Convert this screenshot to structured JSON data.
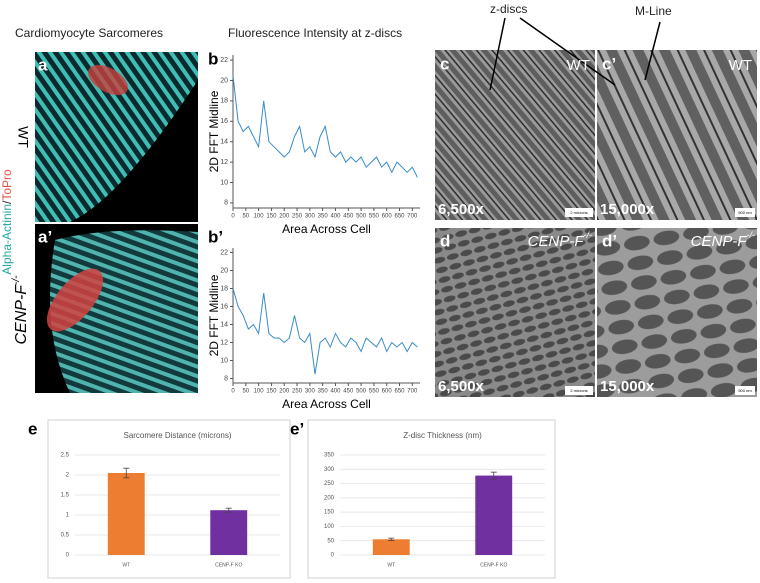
{
  "labels": {
    "col_a": "Cardiomyocyte Sarcomeres",
    "col_b": "Fluorescence Intensity at z-discs",
    "z_discs": "z-discs",
    "m_line": "M-Line",
    "panel_a": "a",
    "panel_a2": "a’",
    "panel_b": "b",
    "panel_b2": "b’",
    "panel_c": "c",
    "panel_c2": "c’",
    "panel_d": "d",
    "panel_d2": "d’",
    "panel_e": "e",
    "panel_e2": "e’",
    "wt": "WT",
    "gene": "CENP-F",
    "genotype": "-/-",
    "stain1": "Alpha-Actinin",
    "stain_sep": "/",
    "stain2": "ToPro",
    "mag_low": "6,500x",
    "mag_high": "15,000x",
    "scale_low": "2 microns",
    "scale_high": "500 nm"
  },
  "chart_data": [
    {
      "type": "line",
      "ylabel": "2D FFT Midline",
      "xlabel": "Area Across Cell",
      "x": [
        0,
        20,
        40,
        60,
        80,
        100,
        120,
        140,
        160,
        180,
        200,
        220,
        240,
        260,
        280,
        300,
        320,
        340,
        360,
        380,
        400,
        420,
        440,
        460,
        480,
        500,
        520,
        540,
        560,
        580,
        600,
        620,
        640,
        660,
        680,
        700,
        720
      ],
      "values": [
        20.5,
        16,
        15,
        15.5,
        14.5,
        13.5,
        18,
        14,
        13.5,
        13,
        12.5,
        13,
        14.5,
        15.5,
        13,
        13.5,
        12.5,
        14.5,
        15.5,
        13,
        12.5,
        13,
        12,
        12.5,
        12,
        12.5,
        11.5,
        12,
        12.5,
        11.5,
        12,
        11,
        12,
        11.5,
        11,
        11.5,
        10.5
      ],
      "color": "#3a8cc8",
      "xlim": [
        0,
        730
      ],
      "ylim": [
        7.5,
        22.5
      ],
      "xticks": [
        0,
        50,
        100,
        150,
        200,
        250,
        300,
        350,
        400,
        450,
        500,
        550,
        600,
        650,
        700
      ],
      "yticks": [
        8,
        10,
        12,
        14,
        16,
        18,
        20,
        22
      ]
    },
    {
      "type": "line",
      "ylabel": "2D FFT Midline",
      "xlabel": "Area Across Cell",
      "x": [
        0,
        20,
        40,
        60,
        80,
        100,
        120,
        140,
        160,
        180,
        200,
        220,
        240,
        260,
        280,
        300,
        320,
        340,
        360,
        380,
        400,
        420,
        440,
        460,
        480,
        500,
        520,
        540,
        560,
        580,
        600,
        620,
        640,
        660,
        680,
        700,
        720
      ],
      "values": [
        18,
        16,
        15,
        13.5,
        14,
        13,
        17.5,
        13,
        12.5,
        12.5,
        12,
        12.5,
        15,
        12.5,
        12,
        13,
        8.5,
        12,
        12.5,
        11.5,
        13,
        12,
        11.5,
        12.5,
        12,
        11,
        12.5,
        12,
        11.5,
        12.5,
        11,
        12,
        11.5,
        12,
        11,
        12,
        11.5
      ],
      "color": "#3a8cc8",
      "xlim": [
        0,
        730
      ],
      "ylim": [
        7.5,
        22.5
      ],
      "xticks": [
        0,
        50,
        100,
        150,
        200,
        250,
        300,
        350,
        400,
        450,
        500,
        550,
        600,
        650,
        700
      ],
      "yticks": [
        8,
        10,
        12,
        14,
        16,
        18,
        20,
        22
      ]
    },
    {
      "type": "bar",
      "title": "Sarcomere Distance (microns)",
      "categories": [
        "WT",
        "CENP-F KO"
      ],
      "values": [
        2.05,
        1.12
      ],
      "errors": [
        0.12,
        0.05
      ],
      "colors": [
        "#ed7d31",
        "#7030a0"
      ],
      "ylim": [
        0,
        2.5
      ],
      "yticks": [
        0,
        0.5,
        1,
        1.5,
        2,
        2.5
      ],
      "grid": true
    },
    {
      "type": "bar",
      "title": "Z-disc Thickness (nm)",
      "categories": [
        "WT",
        "CENP-F KO"
      ],
      "values": [
        55,
        278
      ],
      "errors": [
        4,
        12
      ],
      "colors": [
        "#ed7d31",
        "#7030a0"
      ],
      "ylim": [
        0,
        350
      ],
      "yticks": [
        0,
        50,
        100,
        150,
        200,
        250,
        300,
        350
      ],
      "grid": true
    }
  ]
}
